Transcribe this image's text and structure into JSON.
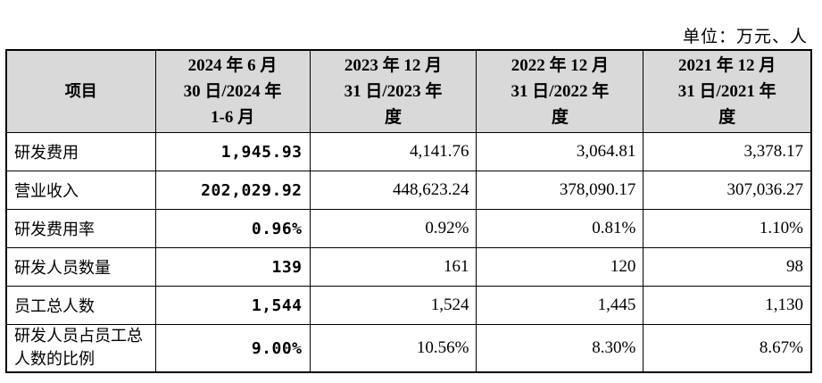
{
  "unit_label": "单位：万元、人",
  "table": {
    "headers": [
      {
        "l1": "项目",
        "l2": "",
        "l3": ""
      },
      {
        "l1": "2024 年 6 月",
        "l2": "30 日/2024 年",
        "l3": "1-6 月"
      },
      {
        "l1": "2023 年 12 月",
        "l2": "31 日/2023 年",
        "l3": "度"
      },
      {
        "l1": "2022 年 12 月",
        "l2": "31 日/2022 年",
        "l3": "度"
      },
      {
        "l1": "2021 年 12 月",
        "l2": "31 日/2021 年",
        "l3": "度"
      }
    ],
    "rows": [
      {
        "label": "研发费用",
        "v2024": "1,945.93",
        "v2023": "4,141.76",
        "v2022": "3,064.81",
        "v2021": "3,378.17"
      },
      {
        "label": "营业收入",
        "v2024": "202,029.92",
        "v2023": "448,623.24",
        "v2022": "378,090.17",
        "v2021": "307,036.27"
      },
      {
        "label": "研发费用率",
        "v2024": "0.96%",
        "v2023": "0.92%",
        "v2022": "0.81%",
        "v2021": "1.10%"
      },
      {
        "label": "研发人员数量",
        "v2024": "139",
        "v2023": "161",
        "v2022": "120",
        "v2021": "98"
      },
      {
        "label": "员工总人数",
        "v2024": "1,544",
        "v2023": "1,524",
        "v2022": "1,445",
        "v2021": "1,130"
      },
      {
        "label": "研发人员占员工总人数的比例",
        "v2024": "9.00%",
        "v2023": "10.56%",
        "v2022": "8.30%",
        "v2021": "8.67%"
      }
    ]
  }
}
